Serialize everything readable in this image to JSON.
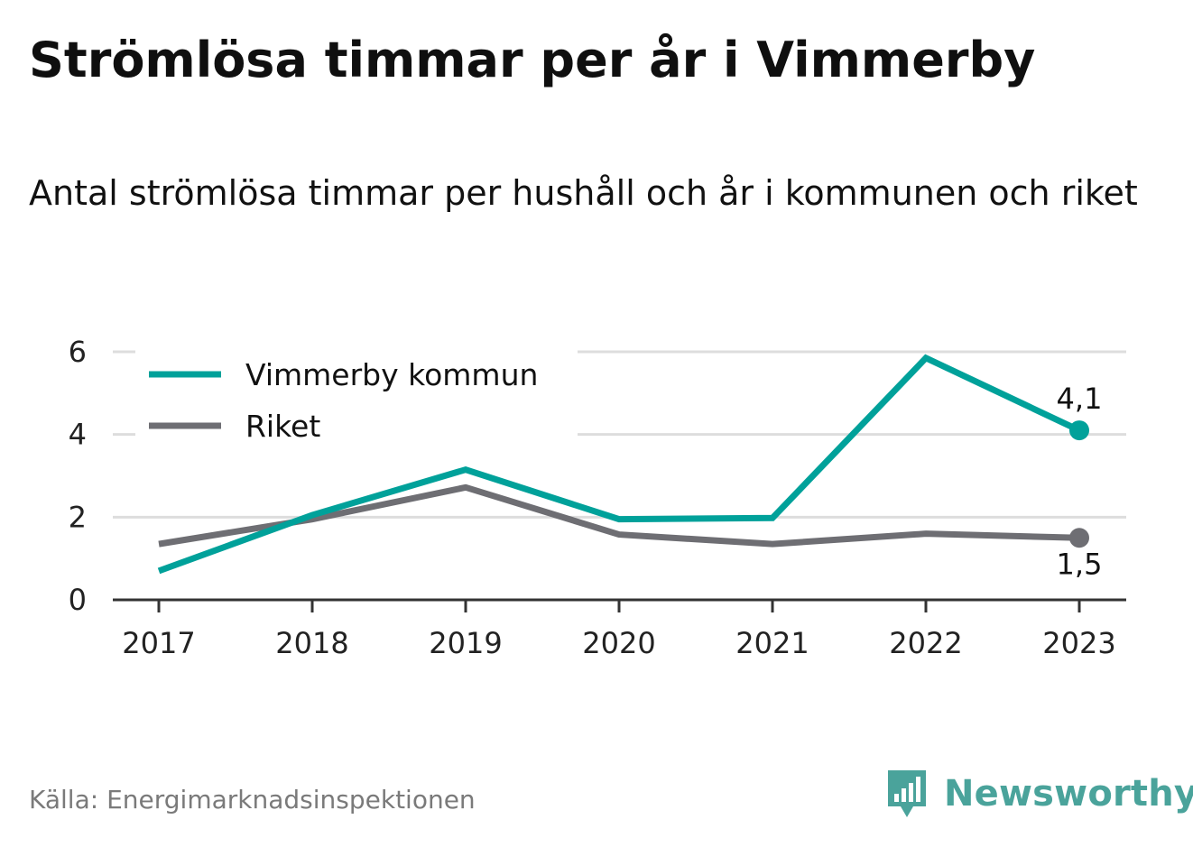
{
  "header": {
    "title": "Strömlösa timmar per år i Vimmerby",
    "subtitle": "Antal strömlösa timmar per hushåll och år i kommunen och riket"
  },
  "footer": {
    "source": "Källa: Energimarknadsinspektionen",
    "brand": "Newsworthy",
    "brand_color": "#4aa39b"
  },
  "chart_data": {
    "type": "line",
    "title": "Strömlösa timmar per år i Vimmerby",
    "subtitle": "Antal strömlösa timmar per hushåll och år i kommunen och riket",
    "x": [
      "2017",
      "2018",
      "2019",
      "2020",
      "2021",
      "2022",
      "2023"
    ],
    "ylim": [
      0,
      6
    ],
    "yticks": [
      "0",
      "2",
      "4",
      "6"
    ],
    "grid": true,
    "legend_position": "top-left",
    "series": [
      {
        "name": "Vimmerby kommun",
        "color": "#00a19a",
        "values": [
          0.7,
          2.05,
          3.15,
          1.95,
          1.98,
          5.85,
          4.1
        ],
        "end_label": "4,1"
      },
      {
        "name": "Riket",
        "color": "#6e6e73",
        "values": [
          1.35,
          1.95,
          2.72,
          1.58,
          1.35,
          1.6,
          1.5
        ],
        "end_label": "1,5"
      }
    ]
  }
}
